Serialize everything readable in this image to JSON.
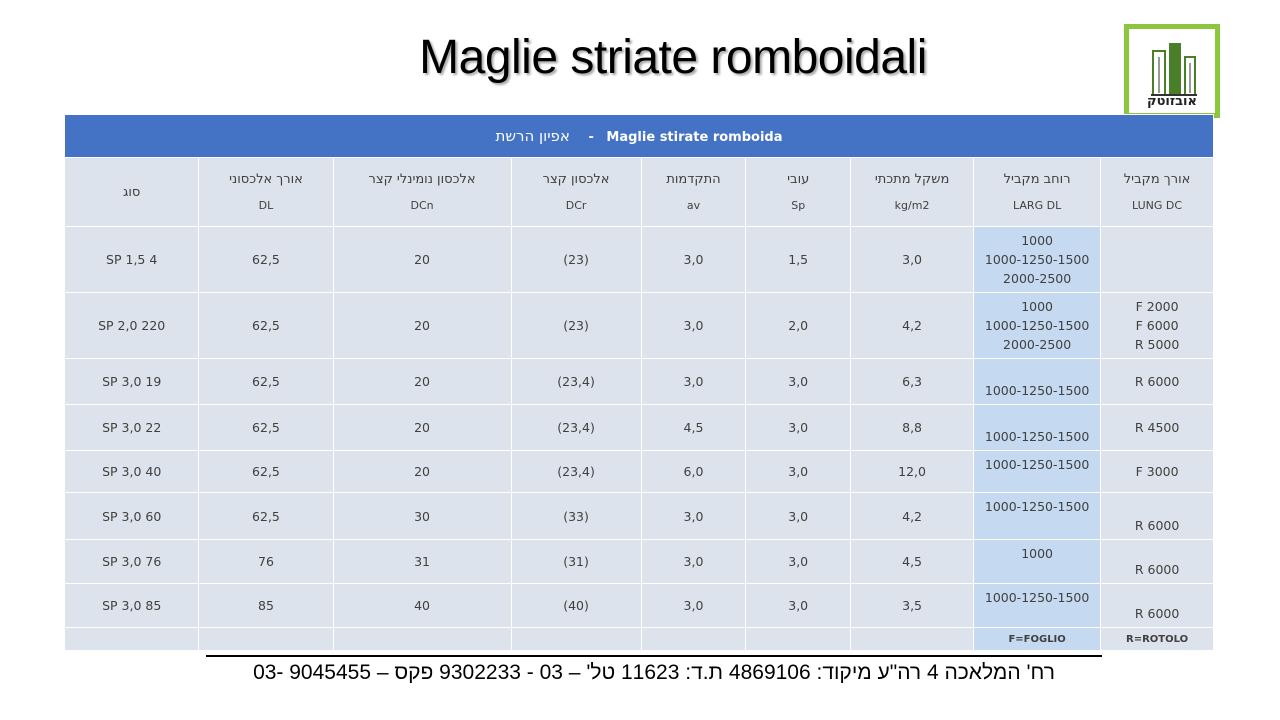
{
  "title": "Maglie striate romboidali",
  "logo": {
    "text": "אובזוטק",
    "colors": {
      "frame": "#8cc63f",
      "building": "#4a7f2a"
    }
  },
  "table": {
    "banner": {
      "latin": "Maglie stirate romboida",
      "separator": "-",
      "hebrew": "אפיון הרשת"
    },
    "columns": [
      {
        "he": "אורך מקביל",
        "code": "LUNG DC"
      },
      {
        "he": "רוחב מקביל",
        "code": "LARG DL"
      },
      {
        "he": "משקל מתכתי",
        "code": "kg/m2"
      },
      {
        "he": "עובי",
        "code": "Sp"
      },
      {
        "he": "התקדמות",
        "code": "av"
      },
      {
        "he": "אלכסון קצר",
        "code": "DCr"
      },
      {
        "he": "אלכסון נומינלי קצר",
        "code": "DCn"
      },
      {
        "he": "אורך אלכסוני",
        "code": "DL"
      },
      {
        "he": "סוג",
        "code": ""
      }
    ],
    "rows": [
      {
        "lung": [
          "",
          "",
          ""
        ],
        "larg": [
          "1000",
          "1000-1250-1500",
          "2000-2500"
        ],
        "kg": "3,0",
        "sp": "1,5",
        "av": "3,0",
        "dcr": "(23)",
        "dcn": "20",
        "dl": "62,5",
        "type": "4 SP 1,5"
      },
      {
        "lung": [
          "2000 F",
          "6000 F",
          "5000 R"
        ],
        "larg": [
          "1000",
          "1000-1250-1500",
          "2000-2500"
        ],
        "kg": "4,2",
        "sp": "2,0",
        "av": "3,0",
        "dcr": "(23)",
        "dcn": "20",
        "dl": "62,5",
        "type": "220 SP 2,0"
      },
      {
        "lung": [
          "6000 R",
          "",
          ""
        ],
        "larg": [
          "1000-1250-1500",
          "",
          ""
        ],
        "kg": "6,3",
        "sp": "3,0",
        "av": "3,0",
        "dcr": "(23,4)",
        "dcn": "20",
        "dl": "62,5",
        "type": "19 SP 3,0"
      },
      {
        "lung": [
          "4500 R",
          "",
          ""
        ],
        "larg": [
          "1000-1250-1500",
          "",
          ""
        ],
        "kg": "8,8",
        "sp": "3,0",
        "av": "4,5",
        "dcr": "(23,4)",
        "dcn": "20",
        "dl": "62,5",
        "type": "22 SP 3,0"
      },
      {
        "lung": [
          "3000 F",
          "",
          ""
        ],
        "larg": [
          "1000-1250-1500",
          "",
          ""
        ],
        "kg": "12,0",
        "sp": "3,0",
        "av": "6,0",
        "dcr": "(23,4)",
        "dcn": "20",
        "dl": "62,5",
        "type": "40 SP 3,0"
      },
      {
        "lung": [
          "6000 R",
          "",
          ""
        ],
        "larg": [
          "1000-1250-1500",
          "",
          ""
        ],
        "kg": "4,2",
        "sp": "3,0",
        "av": "3,0",
        "dcr": "(33)",
        "dcn": "30",
        "dl": "62,5",
        "type": "60 SP 3,0"
      },
      {
        "lung": [
          "6000 R",
          "",
          ""
        ],
        "larg": [
          "1000",
          "",
          ""
        ],
        "kg": "4,5",
        "sp": "3,0",
        "av": "3,0",
        "dcr": "(31)",
        "dcn": "31",
        "dl": "76",
        "type": "76 SP 3,0"
      },
      {
        "lung": [
          "6000 R",
          "",
          ""
        ],
        "larg": [
          "1000-1250-1500",
          "",
          ""
        ],
        "kg": "3,5",
        "sp": "3,0",
        "av": "3,0",
        "dcr": "(40)",
        "dcn": "40",
        "dl": "85",
        "type": "85 SP 3,0"
      }
    ],
    "notes": {
      "lung": "R=ROTOLO",
      "larg": "F=FOGLIO"
    }
  },
  "footer": "רח' המלאכה 4 רה\"ע מיקוד: 4869106 ת.ד: 11623 טל' – 03 - 9302233 פקס – 9045455 -03",
  "colors": {
    "banner": "#4472c4",
    "cell": "#dde3ec",
    "highlight": "#c5d9f1",
    "text": "#404040"
  }
}
